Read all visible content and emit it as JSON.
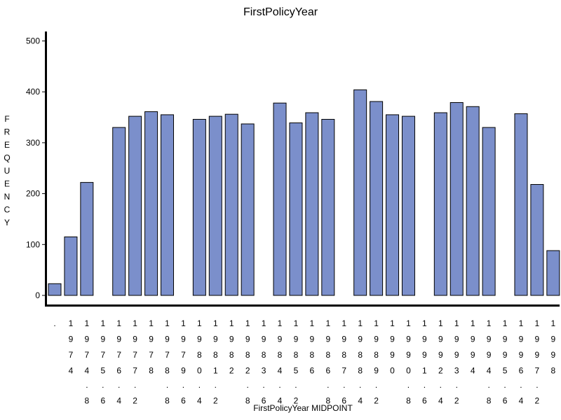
{
  "chart_data": {
    "type": "bar",
    "title": "FirstPolicyYear",
    "xlabel": "FirstPolicyYear  MIDPOINT",
    "ylabel": "FREQUENCY",
    "ylim": [
      0,
      500
    ],
    "yticks": [
      0,
      100,
      200,
      300,
      400,
      500
    ],
    "bar_color": "#7b8fcb",
    "grid": false,
    "categories": [
      ".",
      "1974",
      "1974.8",
      "1975.6",
      "1976.4",
      "1977.2",
      "1978",
      "1978.8",
      "1979.6",
      "1980.4",
      "1981.2",
      "1982",
      "1982.8",
      "1983.6",
      "1984.4",
      "1985.2",
      "1986",
      "1986.8",
      "1987.6",
      "1988.4",
      "1989.2",
      "1990",
      "1990.8",
      "1991.6",
      "1992.4",
      "1993.2",
      "1994",
      "1994.8",
      "1995.6",
      "1996.4",
      "1997.2",
      "1998"
    ],
    "values": [
      23,
      115,
      222,
      0,
      330,
      352,
      361,
      355,
      0,
      346,
      352,
      356,
      337,
      0,
      378,
      339,
      359,
      346,
      0,
      404,
      381,
      355,
      352,
      0,
      359,
      379,
      371,
      330,
      0,
      357,
      218,
      88
    ]
  }
}
